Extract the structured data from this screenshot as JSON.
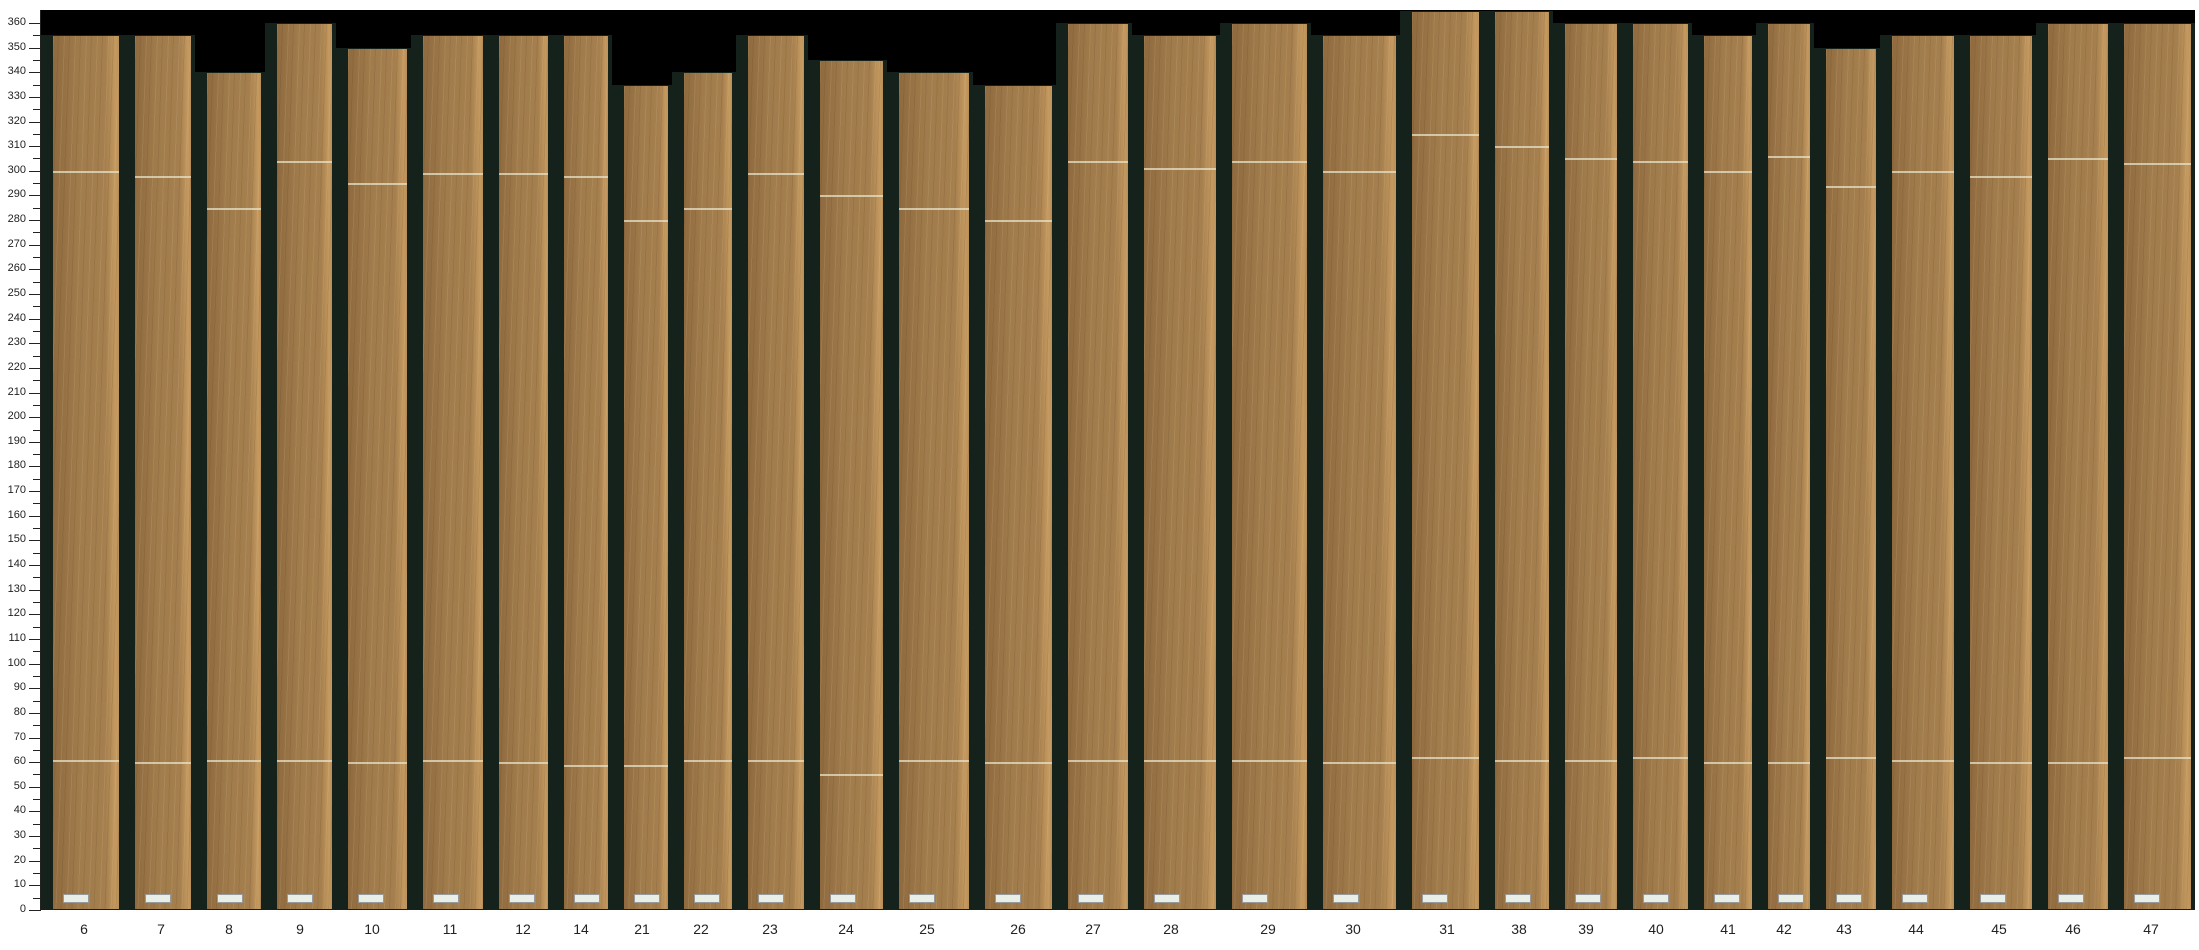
{
  "chart_data": {
    "type": "bar",
    "title": "",
    "xlabel": "",
    "ylabel": "",
    "ylim": [
      0,
      365
    ],
    "y_ticks": [
      "0",
      "10",
      "20",
      "30",
      "40",
      "50",
      "60",
      "70",
      "80",
      "90",
      "100",
      "110",
      "120",
      "130",
      "140",
      "150",
      "160",
      "170",
      "180",
      "190",
      "200",
      "210",
      "220",
      "230",
      "240",
      "250",
      "260",
      "270",
      "280",
      "290",
      "300",
      "310",
      "320",
      "330",
      "340",
      "350",
      "360"
    ],
    "categories": [
      "6",
      "7",
      "8",
      "9",
      "10",
      "11",
      "12",
      "14",
      "21",
      "22",
      "23",
      "24",
      "25",
      "26",
      "27",
      "28",
      "29",
      "30",
      "31",
      "38",
      "39",
      "40",
      "41",
      "42",
      "43",
      "44",
      "45",
      "46",
      "47"
    ],
    "values": [
      355,
      355,
      340,
      360,
      350,
      355,
      355,
      355,
      335,
      340,
      355,
      345,
      340,
      335,
      360,
      355,
      360,
      355,
      365,
      365,
      360,
      360,
      355,
      360,
      350,
      355,
      355,
      360,
      360
    ],
    "upper_cut_marks": [
      300,
      298,
      285,
      304,
      295,
      299,
      299,
      298,
      280,
      285,
      299,
      290,
      285,
      280,
      304,
      301,
      304,
      300,
      315,
      310,
      305,
      304,
      300,
      306,
      294,
      300,
      298,
      305,
      303
    ],
    "lower_cut_marks": [
      61,
      60,
      61,
      61,
      60,
      61,
      60,
      59,
      59,
      61,
      61,
      55,
      61,
      60,
      61,
      61,
      61,
      60,
      62,
      61,
      61,
      62,
      60,
      60,
      62,
      61,
      60,
      60,
      62
    ],
    "background_color": "#000000",
    "board_backdrop_color": "#15221c",
    "wood_color": "#a07b4b",
    "grid": false
  }
}
